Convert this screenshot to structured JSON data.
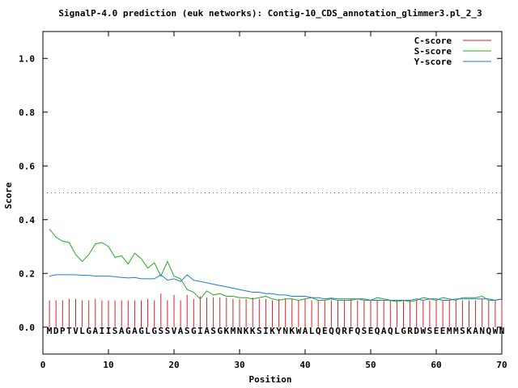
{
  "chart_data": {
    "type": "line",
    "title": "SignalP-4.0 prediction (euk networks): Contig-10_CDS_annotation_glimmer3.pl_2_3",
    "xlabel": "Position",
    "ylabel": "Score",
    "xlim": [
      0,
      70
    ],
    "ylim": [
      -0.1,
      1.1
    ],
    "xticks": [
      0,
      10,
      20,
      30,
      40,
      50,
      60,
      70
    ],
    "yticks": [
      0.0,
      0.2,
      0.4,
      0.6,
      0.8,
      1.0
    ],
    "xtick_labels": [
      "0",
      "10",
      "20",
      "30",
      "40",
      "50",
      "60",
      "70"
    ],
    "ytick_labels": [
      "0.0",
      "0.2",
      "0.4",
      "0.6",
      "0.8",
      "1.0"
    ],
    "threshold": 0.5,
    "threshold_color": "#cc33cc",
    "legend_position": "top-right",
    "sequence": "MDPTVLGAIISAGAGLGSSVASGIASGKMNKKSIKYNKWALQEQQRFQSEQAQLGRDWSEEMMSKANQWN",
    "series": [
      {
        "name": "C-score",
        "style": "impulses",
        "color": "#dd2222",
        "x": [
          1,
          2,
          3,
          4,
          5,
          6,
          7,
          8,
          9,
          10,
          11,
          12,
          13,
          14,
          15,
          16,
          17,
          18,
          19,
          20,
          21,
          22,
          23,
          24,
          25,
          26,
          27,
          28,
          29,
          30,
          31,
          32,
          33,
          34,
          35,
          36,
          37,
          38,
          39,
          40,
          41,
          42,
          43,
          44,
          45,
          46,
          47,
          48,
          49,
          50,
          51,
          52,
          53,
          54,
          55,
          56,
          57,
          58,
          59,
          60,
          61,
          62,
          63,
          64,
          65,
          66,
          67,
          68,
          69,
          70
        ],
        "values": [
          0.1,
          0.1,
          0.1,
          0.105,
          0.105,
          0.1,
          0.1,
          0.105,
          0.1,
          0.1,
          0.1,
          0.1,
          0.1,
          0.1,
          0.1,
          0.105,
          0.1,
          0.125,
          0.1,
          0.12,
          0.1,
          0.12,
          0.105,
          0.115,
          0.11,
          0.11,
          0.11,
          0.11,
          0.105,
          0.105,
          0.105,
          0.11,
          0.105,
          0.105,
          0.1,
          0.105,
          0.105,
          0.105,
          0.1,
          0.105,
          0.1,
          0.1,
          0.1,
          0.1,
          0.1,
          0.1,
          0.105,
          0.1,
          0.1,
          0.1,
          0.1,
          0.1,
          0.1,
          0.1,
          0.1,
          0.1,
          0.1,
          0.1,
          0.1,
          0.1,
          0.1,
          0.1,
          0.1,
          0.1,
          0.1,
          0.1,
          0.105,
          0.1,
          0.1,
          0.1
        ]
      },
      {
        "name": "S-score",
        "style": "line",
        "color": "#22aa22",
        "x": [
          1,
          2,
          3,
          4,
          5,
          6,
          7,
          8,
          9,
          10,
          11,
          12,
          13,
          14,
          15,
          16,
          17,
          18,
          19,
          20,
          21,
          22,
          23,
          24,
          25,
          26,
          27,
          28,
          29,
          30,
          31,
          32,
          33,
          34,
          35,
          36,
          37,
          38,
          39,
          40,
          41,
          42,
          43,
          44,
          45,
          46,
          47,
          48,
          49,
          50,
          51,
          52,
          53,
          54,
          55,
          56,
          57,
          58,
          59,
          60,
          61,
          62,
          63,
          64,
          65,
          66,
          67,
          68,
          69,
          70
        ],
        "values": [
          0.365,
          0.335,
          0.32,
          0.315,
          0.27,
          0.245,
          0.27,
          0.31,
          0.315,
          0.3,
          0.26,
          0.265,
          0.235,
          0.275,
          0.255,
          0.22,
          0.24,
          0.19,
          0.245,
          0.19,
          0.18,
          0.14,
          0.13,
          0.105,
          0.135,
          0.12,
          0.125,
          0.115,
          0.115,
          0.11,
          0.11,
          0.105,
          0.11,
          0.115,
          0.105,
          0.1,
          0.105,
          0.105,
          0.1,
          0.105,
          0.11,
          0.1,
          0.1,
          0.105,
          0.1,
          0.1,
          0.1,
          0.105,
          0.1,
          0.1,
          0.11,
          0.105,
          0.1,
          0.095,
          0.1,
          0.095,
          0.1,
          0.11,
          0.105,
          0.1,
          0.11,
          0.105,
          0.1,
          0.11,
          0.11,
          0.11,
          0.115,
          0.1,
          0.1,
          0.105
        ]
      },
      {
        "name": "Y-score",
        "style": "line",
        "color": "#1e7bd4",
        "x": [
          1,
          2,
          3,
          4,
          5,
          6,
          7,
          8,
          9,
          10,
          11,
          12,
          13,
          14,
          15,
          16,
          17,
          18,
          19,
          20,
          21,
          22,
          23,
          24,
          25,
          26,
          27,
          28,
          29,
          30,
          31,
          32,
          33,
          34,
          35,
          36,
          37,
          38,
          39,
          40,
          41,
          42,
          43,
          44,
          45,
          46,
          47,
          48,
          49,
          50,
          51,
          52,
          53,
          54,
          55,
          56,
          57,
          58,
          59,
          60,
          61,
          62,
          63,
          64,
          65,
          66,
          67,
          68,
          69,
          70
        ],
        "values": [
          0.19,
          0.195,
          0.195,
          0.195,
          0.195,
          0.193,
          0.193,
          0.19,
          0.19,
          0.19,
          0.188,
          0.185,
          0.183,
          0.185,
          0.18,
          0.18,
          0.18,
          0.195,
          0.175,
          0.18,
          0.17,
          0.195,
          0.175,
          0.17,
          0.165,
          0.16,
          0.155,
          0.15,
          0.145,
          0.14,
          0.135,
          0.13,
          0.13,
          0.125,
          0.125,
          0.12,
          0.12,
          0.115,
          0.115,
          0.115,
          0.11,
          0.11,
          0.105,
          0.108,
          0.105,
          0.105,
          0.105,
          0.105,
          0.105,
          0.1,
          0.1,
          0.1,
          0.1,
          0.1,
          0.1,
          0.1,
          0.105,
          0.1,
          0.105,
          0.105,
          0.1,
          0.1,
          0.105,
          0.105,
          0.105,
          0.105,
          0.105,
          0.105,
          0.1,
          0.105
        ]
      }
    ]
  }
}
